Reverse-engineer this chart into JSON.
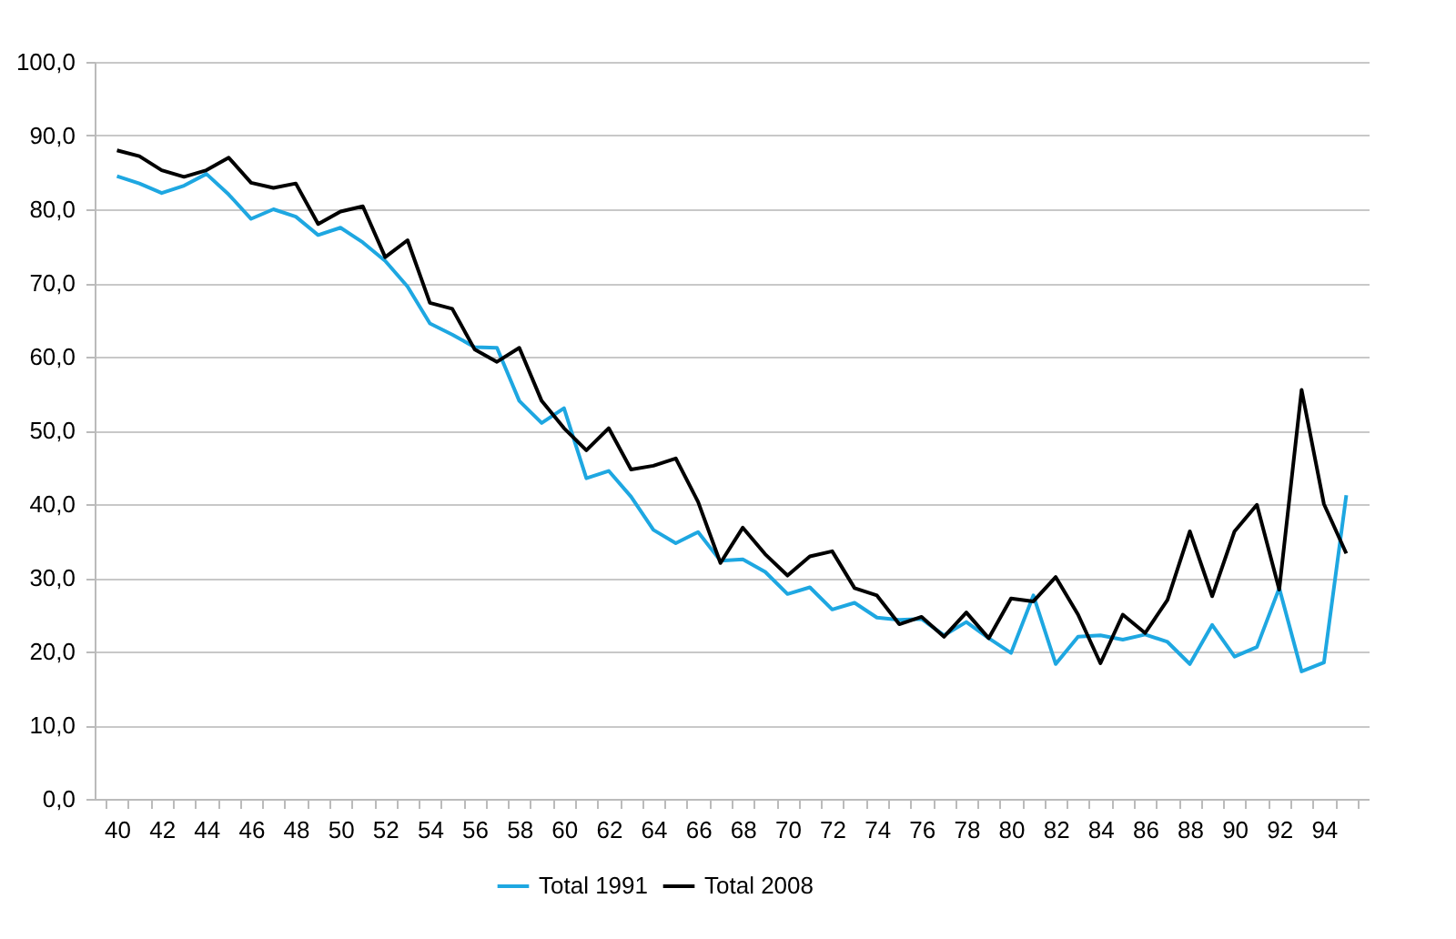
{
  "chart_data": {
    "type": "line",
    "categories": [
      "40",
      null,
      "42",
      null,
      "44",
      null,
      "46",
      null,
      "48",
      null,
      "50",
      null,
      "52",
      null,
      "54",
      null,
      "56",
      null,
      "58",
      null,
      "60",
      null,
      "62",
      null,
      "64",
      null,
      "66",
      null,
      "68",
      null,
      "70",
      null,
      "72",
      null,
      "74",
      null,
      "76",
      null,
      "78",
      null,
      "80",
      null,
      "82",
      null,
      "84",
      null,
      "86",
      null,
      "88",
      null,
      "90",
      null,
      "92",
      null,
      "94",
      null
    ],
    "series": [
      {
        "name": "Total 1991",
        "color": "#1ea7e1",
        "values": [
          84.5,
          83.5,
          82.2,
          83.2,
          84.8,
          82,
          78.7,
          80,
          79,
          76.5,
          77.5,
          75.5,
          73,
          69.5,
          64.5,
          63,
          61.3,
          61.2,
          54,
          51,
          53,
          43.5,
          44.5,
          41,
          36.5,
          34.7,
          36.2,
          32.3,
          32.5,
          30.8,
          27.8,
          28.7,
          25.7,
          26.6,
          24.6,
          24.3,
          24.4,
          22.2,
          24,
          21.8,
          19.8,
          27.6,
          18.3,
          22,
          22.2,
          21.6,
          22.3,
          21.3,
          18.3,
          23.6,
          19.3,
          20.6,
          28.6,
          17.3,
          18.5,
          41.2
        ]
      },
      {
        "name": "Total 2008",
        "color": "#000000",
        "values": [
          88,
          87.2,
          85.3,
          84.4,
          85.3,
          87,
          83.6,
          82.9,
          83.5,
          78,
          79.7,
          80.4,
          73.5,
          75.8,
          67.3,
          66.5,
          61,
          59.3,
          61.2,
          54,
          50.3,
          47.3,
          50.3,
          44.7,
          45.2,
          46.2,
          40.3,
          32,
          36.8,
          33.2,
          30.3,
          32.9,
          33.6,
          28.6,
          27.6,
          23.7,
          24.7,
          22,
          25.3,
          21.8,
          27.2,
          26.8,
          30.1,
          25,
          18.4,
          25,
          22.5,
          27,
          36.3,
          27.5,
          36.3,
          39.9,
          28.4,
          55.5,
          40,
          33.3
        ]
      }
    ],
    "ylim": [
      0,
      100
    ],
    "yticks": [
      {
        "value": 0,
        "label": "0,0"
      },
      {
        "value": 10,
        "label": "10,0"
      },
      {
        "value": 20,
        "label": "20,0"
      },
      {
        "value": 30,
        "label": "30,0"
      },
      {
        "value": 40,
        "label": "40,0"
      },
      {
        "value": 50,
        "label": "50,0"
      },
      {
        "value": 60,
        "label": "60,0"
      },
      {
        "value": 70,
        "label": "70,0"
      },
      {
        "value": 80,
        "label": "80,0"
      },
      {
        "value": 90,
        "label": "90,0"
      },
      {
        "value": 100,
        "label": "100,0"
      }
    ],
    "grid": "y",
    "legend": "bottom",
    "marker": "none",
    "line_style": "solid"
  }
}
